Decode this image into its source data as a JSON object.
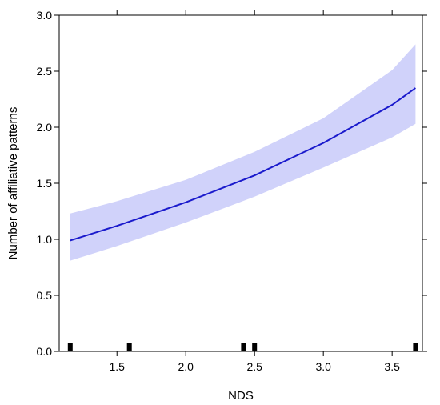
{
  "chart_data": {
    "type": "line",
    "xlabel": "NDS",
    "ylabel": "Number of affiliative patterns",
    "xlim": [
      1.08,
      3.72
    ],
    "ylim": [
      0.0,
      3.0
    ],
    "x_ticks": [
      1.5,
      2.0,
      2.5,
      3.0,
      3.5
    ],
    "x_tick_labels": [
      "1.5",
      "2.0",
      "2.5",
      "3.0",
      "3.5"
    ],
    "y_ticks": [
      0.0,
      0.5,
      1.0,
      1.5,
      2.0,
      2.5,
      3.0
    ],
    "y_tick_labels": [
      "0.0",
      "0.5",
      "1.0",
      "1.5",
      "2.0",
      "2.5",
      "3.0"
    ],
    "grid": false,
    "series": [
      {
        "x": [
          1.16,
          1.5,
          2.0,
          2.5,
          3.0,
          3.5,
          3.67
        ],
        "fit": [
          0.99,
          1.12,
          1.33,
          1.57,
          1.86,
          2.2,
          2.35
        ],
        "lower": [
          0.81,
          0.94,
          1.15,
          1.38,
          1.64,
          1.91,
          2.03
        ],
        "upper": [
          1.23,
          1.34,
          1.53,
          1.78,
          2.08,
          2.51,
          2.74
        ]
      }
    ],
    "rug": [
      1.16,
      1.59,
      2.42,
      2.5,
      3.67
    ],
    "colors": {
      "line": "#1a1acc",
      "band": "#d0d2fa",
      "rug": "#000000",
      "axis": "#000000"
    }
  }
}
